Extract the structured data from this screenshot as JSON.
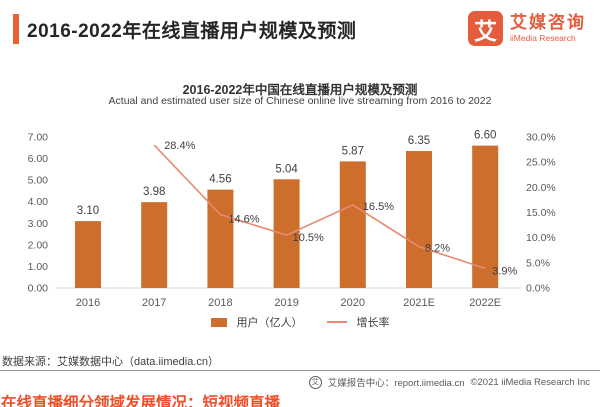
{
  "header": {
    "title": "2016-2022年在线直播用户规模及预测",
    "logo": {
      "glyph": "艾",
      "name_cn": "艾媒咨询",
      "name_en": "iiMedia Research"
    }
  },
  "chart": {
    "title": "2016-2022年中国在线直播用户规模及预测",
    "subtitle": "Actual and estimated user size of Chinese online live streaming from 2016 to 2022"
  },
  "chart_data": {
    "type": "bar",
    "categories": [
      "2016",
      "2017",
      "2018",
      "2019",
      "2020",
      "2021E",
      "2022E"
    ],
    "series": [
      {
        "name": "用户（亿人）",
        "type": "bar",
        "axis": "left",
        "values": [
          3.1,
          3.98,
          4.56,
          5.04,
          5.87,
          6.35,
          6.6
        ],
        "labels": [
          "3.10",
          "3.98",
          "4.56",
          "5.04",
          "5.87",
          "6.35",
          "6.60"
        ],
        "color": "#CE6E2D"
      },
      {
        "name": "增长率",
        "type": "line",
        "axis": "right",
        "values": [
          null,
          28.4,
          14.6,
          10.5,
          16.5,
          8.2,
          3.9
        ],
        "labels": [
          null,
          "28.4%",
          "14.6%",
          "10.5%",
          "16.5%",
          "8.2%",
          "3.9%"
        ],
        "color": "#E78B70"
      }
    ],
    "left_axis": {
      "min": 0,
      "max": 7,
      "step": 1,
      "tick_labels": [
        "0.00",
        "1.00",
        "2.00",
        "3.00",
        "4.00",
        "5.00",
        "6.00",
        "7.00"
      ]
    },
    "right_axis": {
      "min": 0,
      "max": 30,
      "step": 5,
      "tick_labels": [
        "0.0%",
        "5.0%",
        "10.0%",
        "15.0%",
        "20.0%",
        "25.0%",
        "30.0%"
      ]
    },
    "grid": "off",
    "legend_position": "bottom",
    "title": "2016-2022年中国在线直播用户规模及预测",
    "subtitle": "Actual and estimated user size of Chinese online live streaming from 2016 to 2022"
  },
  "footer": {
    "source": "数据来源：艾媒数据中心（data.iimedia.cn）",
    "report_center": "艾媒报告中心：report.iimedia.cn",
    "copyright": "©2021  iiMedia Research Inc",
    "clipped_heading": "在线直播细分领域发展情况：短视频直播"
  },
  "colors": {
    "accent": "#E9622E",
    "brand": "#E45C3C",
    "bar": "#CE6E2D",
    "line": "#E78B70",
    "axis_text": "#595959",
    "label_text": "#404040",
    "clipped_heading": "#F04E29"
  }
}
